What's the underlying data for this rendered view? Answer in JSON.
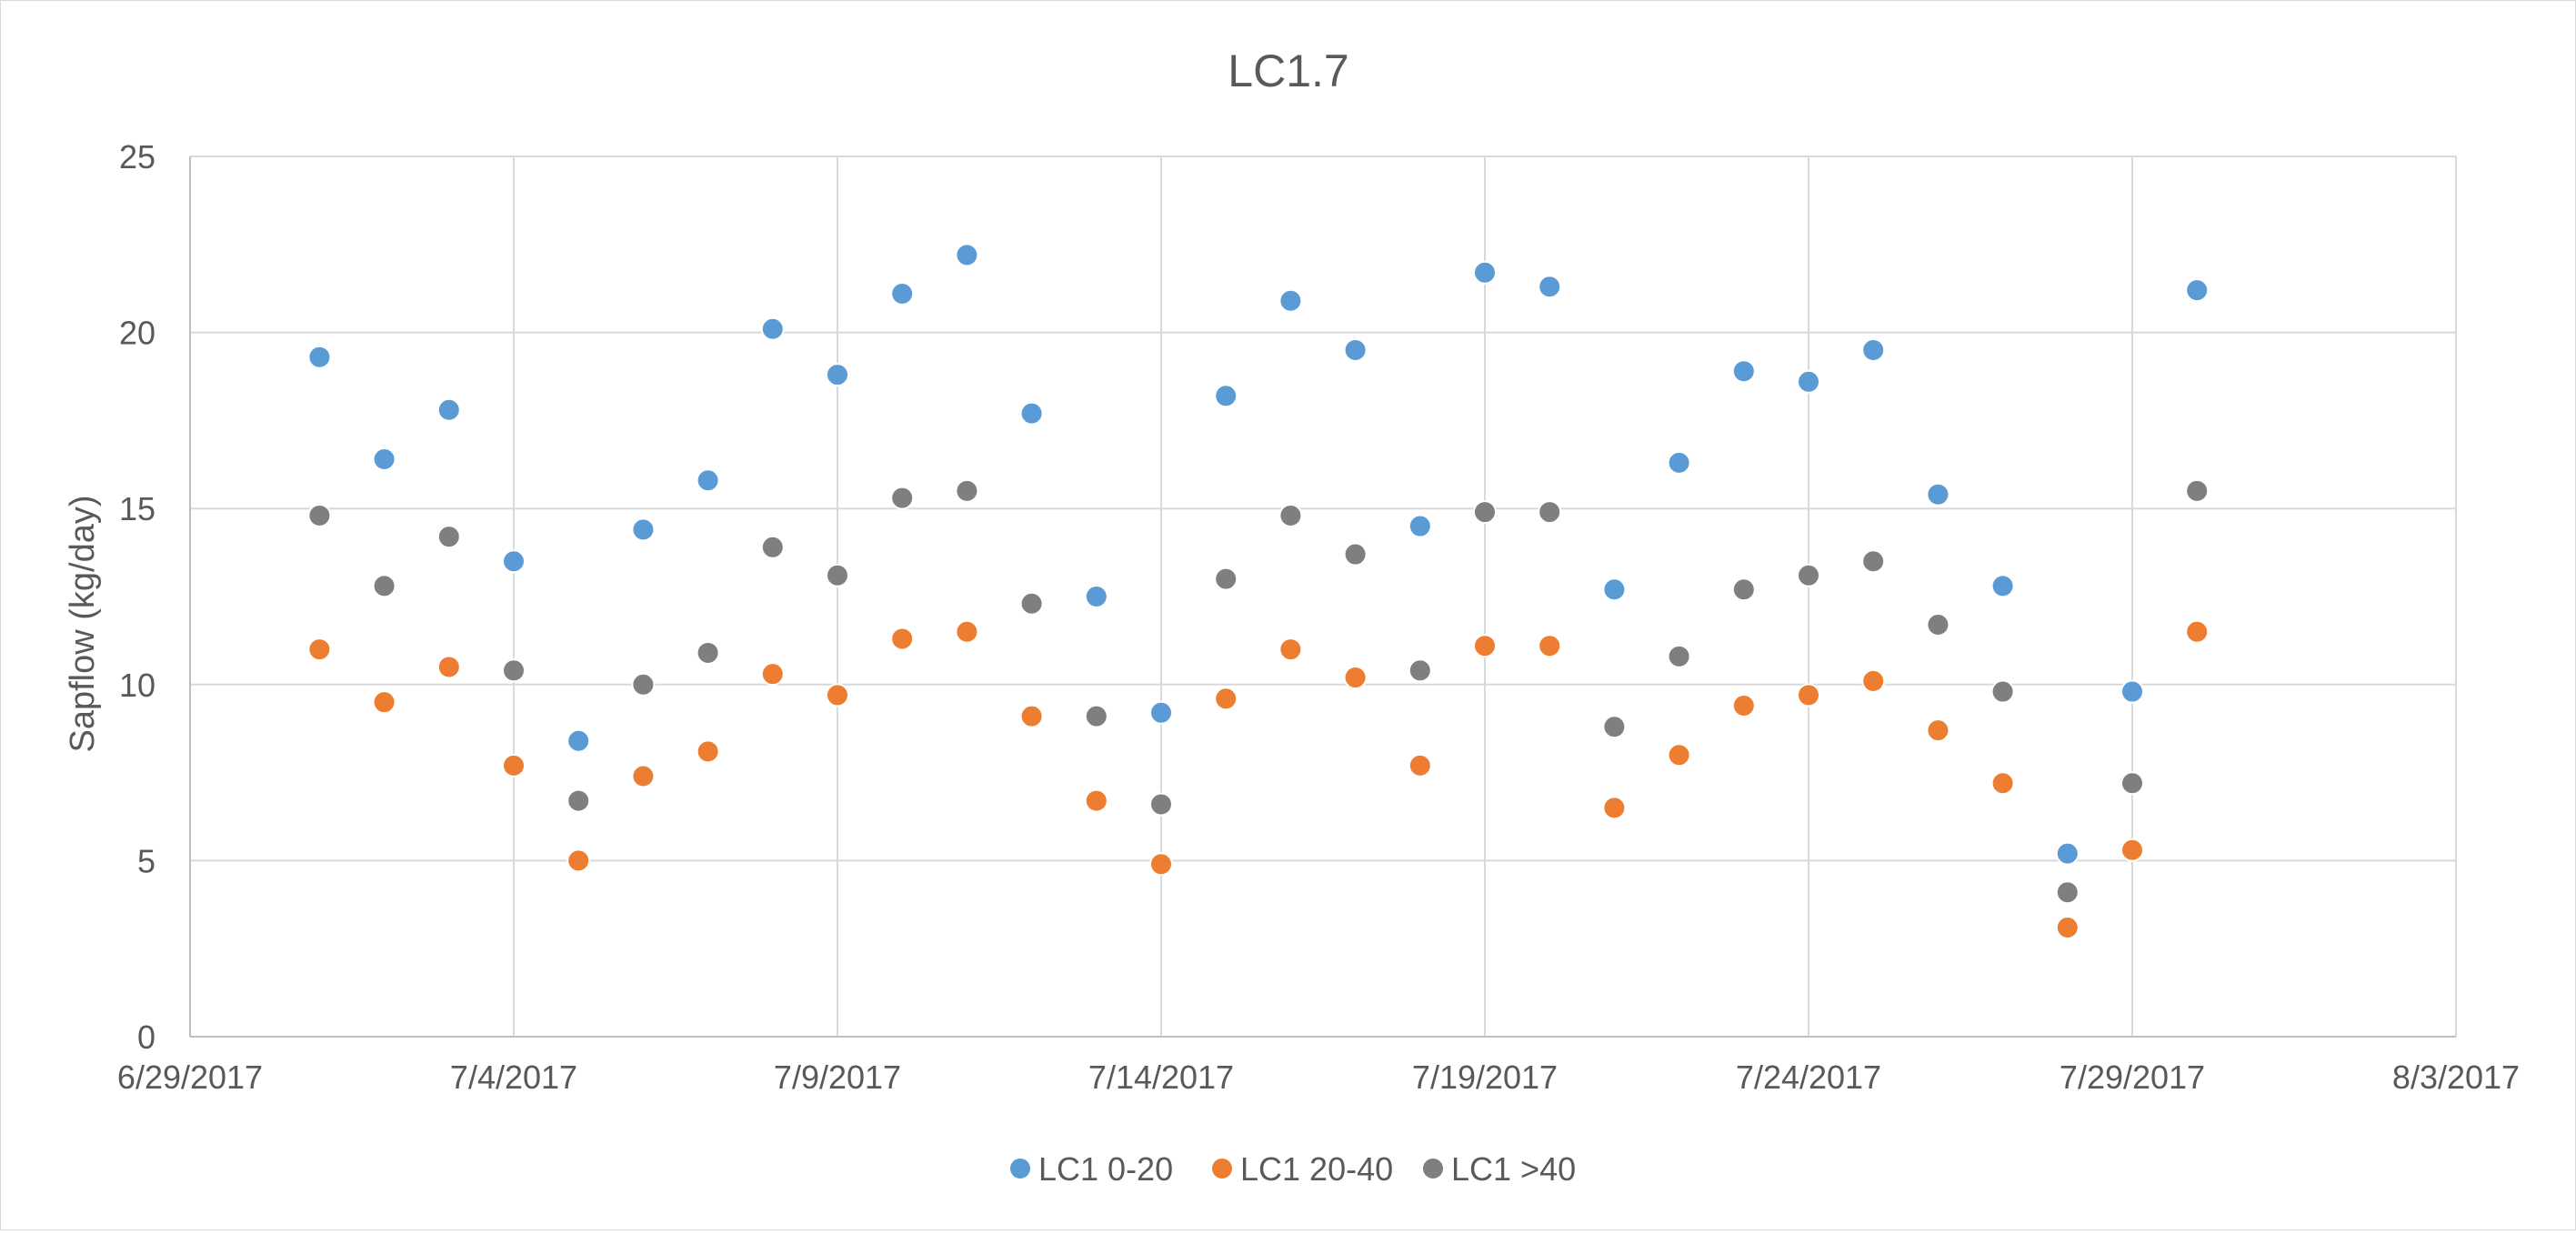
{
  "chart_data": {
    "type": "scatter",
    "title": "LC1.7",
    "xlabel": "",
    "ylabel": "Sapflow (kg/day)",
    "x_ticks": [
      "6/29/2017",
      "7/4/2017",
      "7/9/2017",
      "7/14/2017",
      "7/19/2017",
      "7/24/2017",
      "7/29/2017",
      "8/3/2017"
    ],
    "y_ticks": [
      "0",
      "5",
      "10",
      "15",
      "20",
      "25"
    ],
    "xlim": [
      "6/29/2017",
      "8/3/2017"
    ],
    "ylim": [
      0,
      25
    ],
    "grid": true,
    "legend_position": "bottom",
    "x": [
      "7/1/2017",
      "7/2/2017",
      "7/3/2017",
      "7/4/2017",
      "7/5/2017",
      "7/6/2017",
      "7/7/2017",
      "7/8/2017",
      "7/9/2017",
      "7/10/2017",
      "7/11/2017",
      "7/12/2017",
      "7/13/2017",
      "7/14/2017",
      "7/15/2017",
      "7/16/2017",
      "7/17/2017",
      "7/18/2017",
      "7/19/2017",
      "7/20/2017",
      "7/21/2017",
      "7/22/2017",
      "7/23/2017",
      "7/24/2017",
      "7/25/2017",
      "7/26/2017",
      "7/27/2017",
      "7/28/2017",
      "7/29/2017",
      "7/30/2017"
    ],
    "series": [
      {
        "name": "LC1 0-20",
        "color": "#5b9bd5",
        "values": [
          19.3,
          16.4,
          17.8,
          13.5,
          8.4,
          14.4,
          15.8,
          20.1,
          18.8,
          21.1,
          22.2,
          17.7,
          12.5,
          9.2,
          18.2,
          20.9,
          19.5,
          14.5,
          21.7,
          21.3,
          12.7,
          16.3,
          18.9,
          18.6,
          19.5,
          15.4,
          12.8,
          5.2,
          9.8,
          21.2
        ]
      },
      {
        "name": "LC1 20-40",
        "color": "#ed7d31",
        "values": [
          11.0,
          9.5,
          10.5,
          7.7,
          5.0,
          7.4,
          8.1,
          10.3,
          9.7,
          11.3,
          11.5,
          9.1,
          6.7,
          4.9,
          9.6,
          11.0,
          10.2,
          7.7,
          11.1,
          11.1,
          6.5,
          8.0,
          9.4,
          9.7,
          10.1,
          8.7,
          7.2,
          3.1,
          5.3,
          11.5
        ]
      },
      {
        "name": "LC1 >40",
        "color": "#7f7f7f",
        "values": [
          14.8,
          12.8,
          14.2,
          10.4,
          6.7,
          10.0,
          10.9,
          13.9,
          13.1,
          15.3,
          15.5,
          12.3,
          9.1,
          6.6,
          13.0,
          14.8,
          13.7,
          10.4,
          14.9,
          14.9,
          8.8,
          10.8,
          12.7,
          13.1,
          13.5,
          11.7,
          9.8,
          4.1,
          7.2,
          15.5
        ]
      }
    ]
  }
}
